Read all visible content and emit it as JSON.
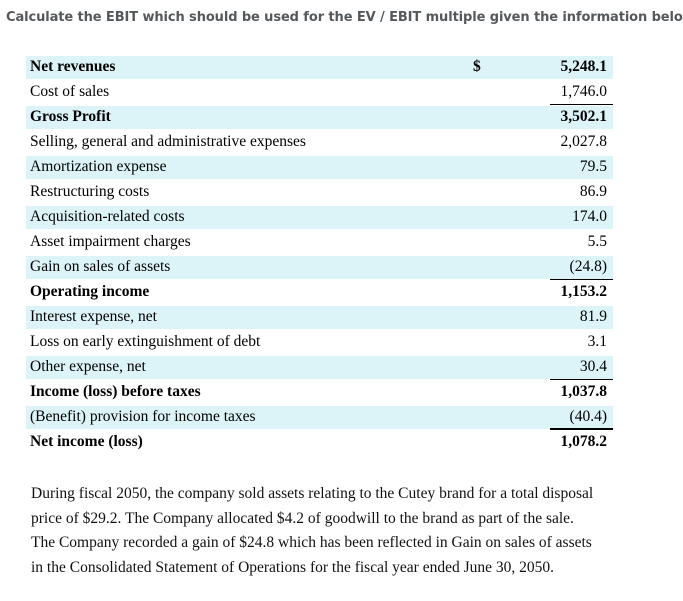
{
  "question": "Calculate the EBIT which should be used for the EV / EBIT multiple given the information below:",
  "table": {
    "currency_symbol": "$",
    "rows": [
      {
        "label": "Net revenues",
        "value": "5,248.1"
      },
      {
        "label": "Cost of sales",
        "value": "1,746.0"
      },
      {
        "label": "Gross Profit",
        "value": "3,502.1"
      },
      {
        "label": "Selling, general and administrative expenses",
        "value": "2,027.8"
      },
      {
        "label": "Amortization expense",
        "value": "79.5"
      },
      {
        "label": "Restructuring costs",
        "value": "86.9"
      },
      {
        "label": "Acquisition-related costs",
        "value": "174.0"
      },
      {
        "label": "Asset impairment charges",
        "value": "5.5"
      },
      {
        "label": "Gain on sales of assets",
        "value": "(24.8)"
      },
      {
        "label": "Operating income",
        "value": "1,153.2"
      },
      {
        "label": "Interest expense, net",
        "value": "81.9"
      },
      {
        "label": "Loss on early extinguishment of debt",
        "value": "3.1"
      },
      {
        "label": "Other expense, net",
        "value": "30.4"
      },
      {
        "label": "Income (loss) before taxes",
        "value": "1,037.8"
      },
      {
        "label": "(Benefit) provision for income taxes",
        "value": "(40.4)"
      },
      {
        "label": "Net income (loss)",
        "value": "1,078.2"
      }
    ]
  },
  "note": {
    "lines": [
      "During fiscal 2050, the company sold assets relating to the Cutey brand for a total disposal",
      "price of $29.2. The Company allocated $4.2 of goodwill to the brand as part of the sale.",
      "The Company recorded a gain of $24.8 which has been reflected in Gain on sales of assets",
      "in the Consolidated Statement of Operations for the fiscal year ended June 30, 2050."
    ]
  }
}
